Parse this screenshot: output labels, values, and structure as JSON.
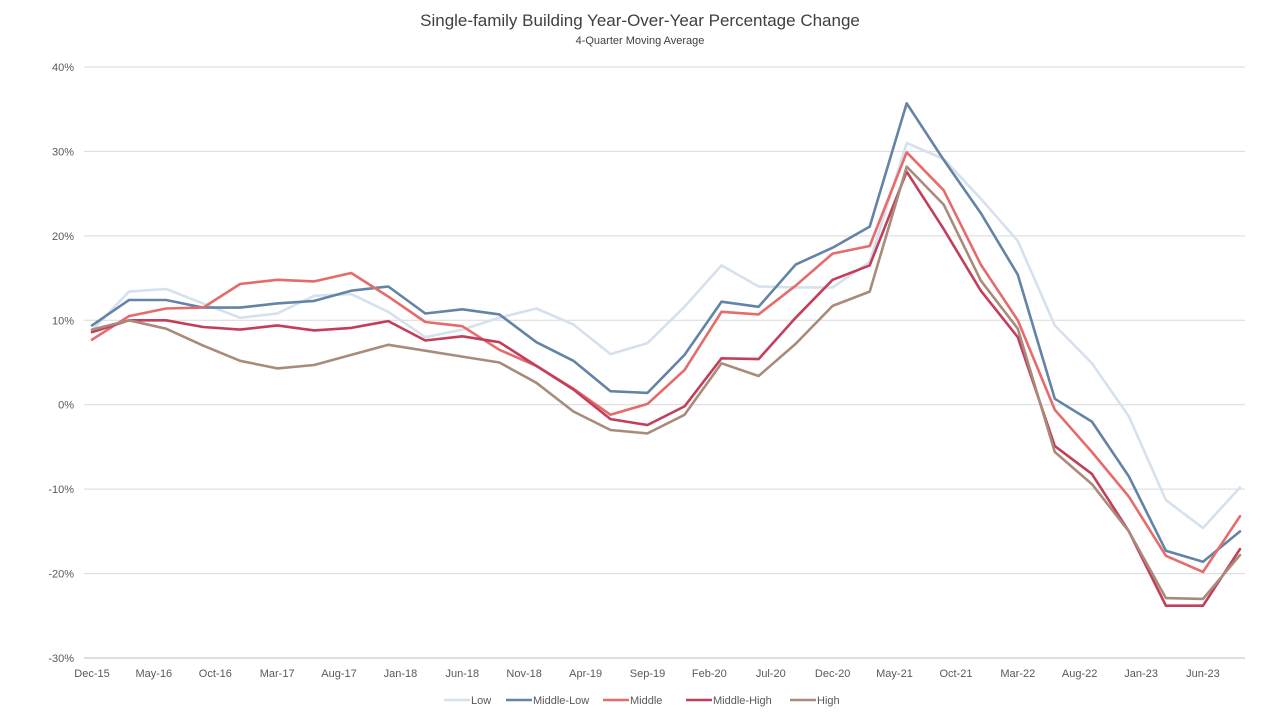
{
  "chart_data": {
    "type": "line",
    "title": "Single-family Building Year-Over-Year Percentage Change",
    "subtitle": "4-Quarter Moving Average",
    "ylim": [
      -30,
      40
    ],
    "yticks": [
      -30,
      -20,
      -10,
      0,
      10,
      20,
      30,
      40
    ],
    "ytick_labels": [
      "-30%",
      "-20%",
      "-10%",
      "0%",
      "10%",
      "20%",
      "30%",
      "40%"
    ],
    "grid": true,
    "legend_position": "bottom",
    "x": [
      "Dec-15",
      "Mar-16",
      "Jun-16",
      "Sep-16",
      "Dec-16",
      "Mar-17",
      "Jun-17",
      "Sep-17",
      "Dec-17",
      "Mar-18",
      "Jun-18",
      "Sep-18",
      "Dec-18",
      "Mar-19",
      "Jun-19",
      "Sep-19",
      "Dec-19",
      "Mar-20",
      "Jun-20",
      "Sep-20",
      "Dec-20",
      "Mar-21",
      "Jun-21",
      "Sep-21",
      "Dec-21",
      "Mar-22",
      "Jun-22",
      "Sep-22",
      "Dec-22",
      "Mar-23",
      "Jun-23",
      "Sep-23"
    ],
    "x_tick_labels": [
      {
        "index": 0,
        "label": "Dec-15"
      },
      {
        "index": 1.67,
        "label": "May-16"
      },
      {
        "index": 3.33,
        "label": "Oct-16"
      },
      {
        "index": 5,
        "label": "Mar-17"
      },
      {
        "index": 6.67,
        "label": "Aug-17"
      },
      {
        "index": 8.33,
        "label": "Jan-18"
      },
      {
        "index": 10,
        "label": "Jun-18"
      },
      {
        "index": 11.67,
        "label": "Nov-18"
      },
      {
        "index": 13.33,
        "label": "Apr-19"
      },
      {
        "index": 15,
        "label": "Sep-19"
      },
      {
        "index": 16.67,
        "label": "Feb-20"
      },
      {
        "index": 18.33,
        "label": "Jul-20"
      },
      {
        "index": 20,
        "label": "Dec-20"
      },
      {
        "index": 21.67,
        "label": "May-21"
      },
      {
        "index": 23.33,
        "label": "Oct-21"
      },
      {
        "index": 25,
        "label": "Mar-22"
      },
      {
        "index": 26.67,
        "label": "Aug-22"
      },
      {
        "index": 28.33,
        "label": "Jan-23"
      },
      {
        "index": 30,
        "label": "Jun-23"
      }
    ],
    "series": [
      {
        "name": "Low",
        "color": "#d6e1ee",
        "values": [
          8.8,
          13.4,
          13.7,
          12.0,
          10.3,
          10.8,
          12.9,
          13.1,
          11.0,
          8.0,
          8.9,
          10.3,
          11.4,
          9.5,
          6.0,
          7.3,
          11.6,
          16.5,
          14.0,
          13.9,
          13.9,
          16.9,
          31.0,
          29.1,
          24.4,
          19.4,
          9.4,
          4.9,
          -1.4,
          -11.3,
          -14.6,
          -9.8
        ]
      },
      {
        "name": "Middle-Low",
        "color": "#6384a6",
        "values": [
          9.4,
          12.4,
          12.4,
          11.5,
          11.5,
          12.0,
          12.3,
          13.5,
          14.0,
          10.8,
          11.3,
          10.7,
          7.4,
          5.2,
          1.6,
          1.4,
          5.9,
          12.2,
          11.6,
          16.6,
          18.6,
          21.1,
          35.7,
          29.0,
          22.7,
          15.4,
          0.7,
          -2.0,
          -8.5,
          -17.3,
          -18.6,
          -15.0
        ]
      },
      {
        "name": "Middle",
        "color": "#e66b6b",
        "values": [
          7.7,
          10.5,
          11.4,
          11.5,
          14.3,
          14.8,
          14.6,
          15.6,
          12.8,
          9.8,
          9.3,
          6.5,
          4.6,
          1.9,
          -1.2,
          0.1,
          4.1,
          11.0,
          10.7,
          14.1,
          17.9,
          18.8,
          29.9,
          25.4,
          16.6,
          10.0,
          -0.6,
          -5.6,
          -10.9,
          -17.9,
          -19.8,
          -13.2
        ]
      },
      {
        "name": "Middle-High",
        "color": "#c23f5c",
        "values": [
          8.6,
          10.0,
          10.0,
          9.2,
          8.9,
          9.4,
          8.8,
          9.1,
          9.9,
          7.6,
          8.1,
          7.4,
          4.6,
          1.8,
          -1.7,
          -2.4,
          -0.2,
          5.5,
          5.4,
          10.3,
          14.8,
          16.5,
          27.6,
          20.8,
          13.5,
          8.0,
          -4.9,
          -8.2,
          -15.0,
          -23.8,
          -23.8,
          -17.1
        ]
      },
      {
        "name": "High",
        "color": "#a98b7c",
        "values": [
          8.9,
          10.0,
          9.0,
          7.0,
          5.2,
          4.3,
          4.7,
          5.9,
          7.1,
          6.4,
          5.7,
          5.0,
          2.6,
          -0.8,
          -3.0,
          -3.4,
          -1.2,
          4.9,
          3.4,
          7.2,
          11.7,
          13.4,
          28.2,
          23.7,
          14.7,
          9.0,
          -5.6,
          -9.4,
          -15.0,
          -22.9,
          -23.0,
          -17.8
        ]
      }
    ]
  }
}
